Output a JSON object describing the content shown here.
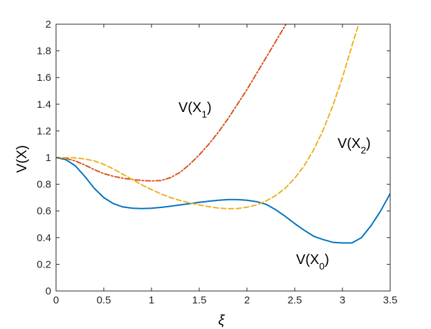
{
  "chart_data": {
    "type": "line",
    "title": "",
    "xlabel": "ξ",
    "ylabel": "V(X)",
    "xlim": [
      0,
      3.5
    ],
    "ylim": [
      0,
      2
    ],
    "x_ticks": [
      "0",
      "0.5",
      "1",
      "1.5",
      "2",
      "2.5",
      "3",
      "3.5"
    ],
    "y_ticks": [
      "0",
      "0.2",
      "0.4",
      "0.6",
      "0.8",
      "1",
      "1.2",
      "1.4",
      "1.6",
      "1.8",
      "2"
    ],
    "grid": false,
    "series": [
      {
        "name": "V(X0)",
        "label_main": "V(X",
        "label_sub": "0",
        "label_end": ")",
        "color": "#0072BD",
        "style": "solid",
        "points": [
          [
            0,
            1.0
          ],
          [
            0.1,
            0.985
          ],
          [
            0.2,
            0.94
          ],
          [
            0.3,
            0.86
          ],
          [
            0.4,
            0.77
          ],
          [
            0.5,
            0.7
          ],
          [
            0.6,
            0.655
          ],
          [
            0.7,
            0.63
          ],
          [
            0.8,
            0.62
          ],
          [
            0.9,
            0.618
          ],
          [
            1.0,
            0.62
          ],
          [
            1.1,
            0.627
          ],
          [
            1.2,
            0.635
          ],
          [
            1.3,
            0.645
          ],
          [
            1.4,
            0.655
          ],
          [
            1.5,
            0.665
          ],
          [
            1.6,
            0.673
          ],
          [
            1.7,
            0.68
          ],
          [
            1.8,
            0.685
          ],
          [
            1.9,
            0.685
          ],
          [
            2.0,
            0.68
          ],
          [
            2.1,
            0.67
          ],
          [
            2.2,
            0.65
          ],
          [
            2.3,
            0.61
          ],
          [
            2.4,
            0.56
          ],
          [
            2.5,
            0.505
          ],
          [
            2.6,
            0.455
          ],
          [
            2.7,
            0.41
          ],
          [
            2.8,
            0.385
          ],
          [
            2.9,
            0.365
          ],
          [
            3.0,
            0.36
          ],
          [
            3.1,
            0.36
          ],
          [
            3.2,
            0.4
          ],
          [
            3.3,
            0.49
          ],
          [
            3.4,
            0.6
          ],
          [
            3.5,
            0.73
          ]
        ]
      },
      {
        "name": "V(X1)",
        "label_main": "V(X",
        "label_sub": "1",
        "label_end": ")",
        "color": "#D95319",
        "style": "dashdot",
        "points": [
          [
            0,
            1.0
          ],
          [
            0.1,
            0.995
          ],
          [
            0.2,
            0.975
          ],
          [
            0.3,
            0.945
          ],
          [
            0.4,
            0.91
          ],
          [
            0.5,
            0.88
          ],
          [
            0.6,
            0.86
          ],
          [
            0.7,
            0.845
          ],
          [
            0.8,
            0.835
          ],
          [
            0.9,
            0.828
          ],
          [
            1.0,
            0.825
          ],
          [
            1.1,
            0.828
          ],
          [
            1.2,
            0.85
          ],
          [
            1.3,
            0.89
          ],
          [
            1.4,
            0.95
          ],
          [
            1.5,
            1.02
          ],
          [
            1.6,
            1.1
          ],
          [
            1.7,
            1.19
          ],
          [
            1.8,
            1.29
          ],
          [
            1.9,
            1.4
          ],
          [
            2.0,
            1.51
          ],
          [
            2.1,
            1.63
          ],
          [
            2.2,
            1.75
          ],
          [
            2.3,
            1.87
          ],
          [
            2.4,
            1.99
          ],
          [
            2.41,
            2.0
          ]
        ]
      },
      {
        "name": "V(X2)",
        "label_main": "V(X",
        "label_sub": "2",
        "label_end": ")",
        "color": "#EDB120",
        "style": "dashed",
        "points": [
          [
            0,
            1.0
          ],
          [
            0.1,
            1.0
          ],
          [
            0.2,
            0.998
          ],
          [
            0.3,
            0.99
          ],
          [
            0.4,
            0.975
          ],
          [
            0.5,
            0.95
          ],
          [
            0.6,
            0.915
          ],
          [
            0.7,
            0.875
          ],
          [
            0.8,
            0.835
          ],
          [
            0.9,
            0.795
          ],
          [
            1.0,
            0.76
          ],
          [
            1.1,
            0.728
          ],
          [
            1.2,
            0.7
          ],
          [
            1.3,
            0.678
          ],
          [
            1.4,
            0.66
          ],
          [
            1.5,
            0.645
          ],
          [
            1.6,
            0.632
          ],
          [
            1.7,
            0.622
          ],
          [
            1.8,
            0.617
          ],
          [
            1.9,
            0.618
          ],
          [
            2.0,
            0.628
          ],
          [
            2.1,
            0.645
          ],
          [
            2.2,
            0.675
          ],
          [
            2.3,
            0.715
          ],
          [
            2.4,
            0.77
          ],
          [
            2.5,
            0.845
          ],
          [
            2.6,
            0.94
          ],
          [
            2.7,
            1.06
          ],
          [
            2.8,
            1.21
          ],
          [
            2.9,
            1.39
          ],
          [
            3.0,
            1.6
          ],
          [
            3.1,
            1.84
          ],
          [
            3.17,
            2.0
          ]
        ]
      }
    ]
  }
}
